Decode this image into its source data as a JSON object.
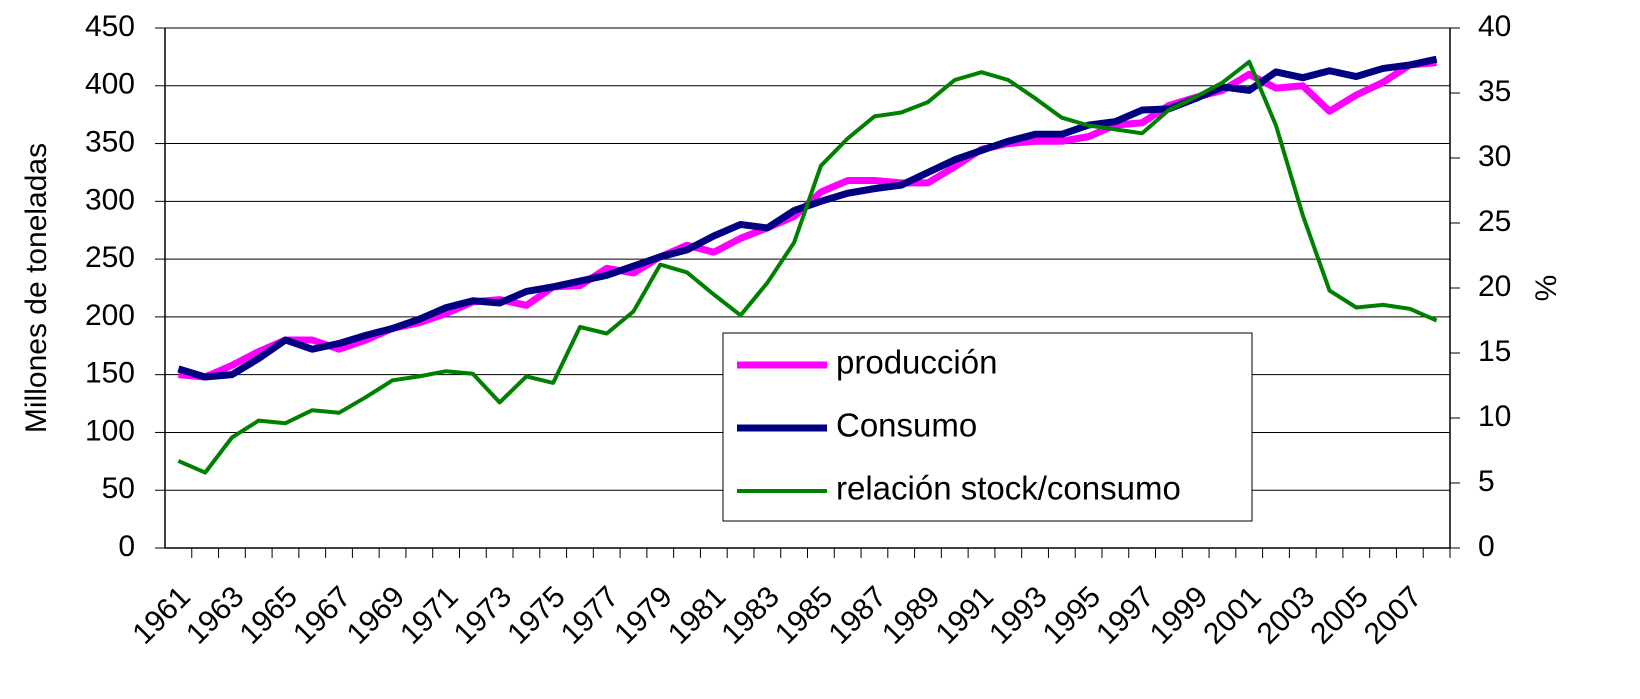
{
  "chart_data": {
    "type": "line",
    "y_label": "Millones de toneladas",
    "y2_label": "%",
    "categories": [
      "1961",
      null,
      "1963",
      null,
      "1965",
      null,
      "1967",
      null,
      "1969",
      null,
      "1971",
      null,
      "1973",
      null,
      "1975",
      null,
      "1977",
      null,
      "1979",
      null,
      "1981",
      null,
      "1983",
      null,
      "1985",
      null,
      "1987",
      null,
      "1989",
      null,
      "1991",
      null,
      "1993",
      null,
      "1995",
      null,
      "1997",
      null,
      "1999",
      null,
      "2001",
      null,
      "2003",
      null,
      "2005",
      null,
      "2007",
      null
    ],
    "ylim": [
      0,
      450
    ],
    "yticks": [
      0,
      50,
      100,
      150,
      200,
      250,
      300,
      350,
      400,
      450
    ],
    "y2lim": [
      0,
      40
    ],
    "y2ticks": [
      0,
      5,
      10,
      15,
      20,
      25,
      30,
      35,
      40
    ],
    "grid": true,
    "series": [
      {
        "name": "producción",
        "color": "#ff00ff",
        "values": [
          150,
          148,
          158,
          170,
          180,
          180,
          172,
          180,
          190,
          195,
          203,
          213,
          215,
          210,
          226,
          227,
          242,
          238,
          252,
          262,
          256,
          268,
          277,
          287,
          308,
          318,
          318,
          316,
          316,
          330,
          345,
          350,
          352,
          352,
          356,
          366,
          368,
          383,
          390,
          396,
          410,
          398,
          400,
          378,
          392,
          403,
          418,
          420
        ]
      },
      {
        "name": "Consumo",
        "color": "#000080",
        "values": [
          155,
          148,
          150,
          164,
          180,
          172,
          177,
          184,
          190,
          198,
          208,
          214,
          212,
          222,
          226,
          231,
          236,
          244,
          252,
          258,
          270,
          280,
          277,
          292,
          300,
          307,
          311,
          314,
          325,
          336,
          344,
          352,
          358,
          358,
          366,
          369,
          379,
          380,
          389,
          399,
          396,
          412,
          407,
          413,
          408,
          415,
          418,
          423
        ]
      },
      {
        "name": "relación stock/consumo",
        "color": "#008000",
        "axis": "y2",
        "values": [
          6.7,
          5.8,
          8.5,
          9.8,
          9.6,
          10.6,
          10.4,
          11.6,
          12.9,
          13.2,
          13.6,
          13.4,
          11.2,
          13.2,
          12.7,
          17.0,
          16.5,
          18.2,
          21.8,
          21.2,
          19.5,
          17.9,
          20.4,
          23.5,
          29.4,
          31.5,
          33.2,
          33.5,
          34.3,
          36.0,
          36.6,
          36.0,
          34.6,
          33.1,
          32.5,
          32.2,
          31.9,
          33.7,
          34.7,
          35.8,
          37.4,
          32.5,
          25.6,
          19.8,
          18.5,
          18.7,
          18.4,
          17.5
        ]
      }
    ]
  }
}
